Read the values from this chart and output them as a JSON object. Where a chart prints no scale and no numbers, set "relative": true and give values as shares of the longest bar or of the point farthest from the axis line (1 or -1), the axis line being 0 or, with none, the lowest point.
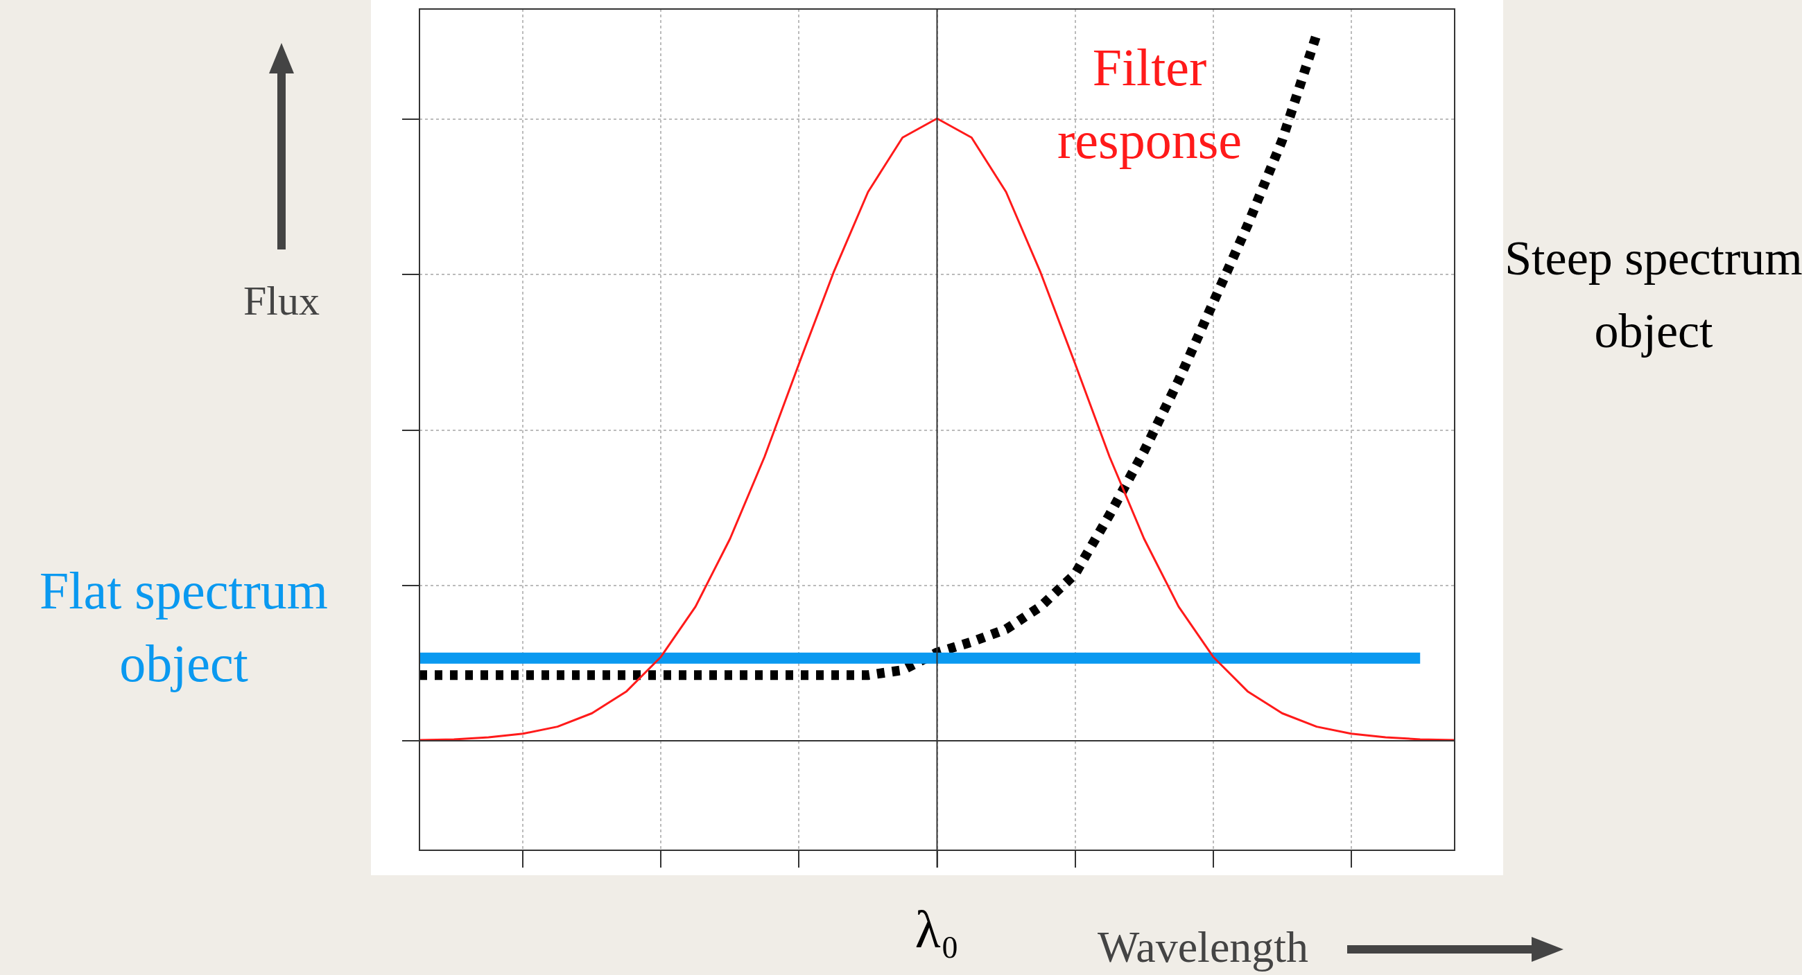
{
  "chart_data": {
    "type": "line",
    "relative": true,
    "xlabel": "Wavelength",
    "ylabel": "Flux",
    "legend": false,
    "grid": true,
    "annotations": [
      "λ₀"
    ],
    "categories": [
      null,
      null,
      null,
      null,
      null,
      null,
      null,
      null,
      null,
      null,
      null,
      null,
      null,
      null,
      null,
      null,
      null,
      null,
      null,
      null,
      null,
      null,
      null,
      null,
      null,
      null,
      null,
      null,
      null,
      null,
      null
    ],
    "series": [
      {
        "name": "Filter response",
        "color": "#ff1a1a",
        "line_style": "solid",
        "values": [
          0.001,
          0.002,
          0.005,
          0.01,
          0.02,
          0.039,
          0.07,
          0.119,
          0.19,
          0.286,
          0.402,
          0.534,
          0.663,
          0.777,
          0.854,
          0.881,
          0.854,
          0.777,
          0.663,
          0.534,
          0.402,
          0.286,
          0.19,
          0.119,
          0.07,
          0.039,
          0.02,
          0.01,
          0.005,
          0.002,
          0.001
        ]
      },
      {
        "name": "Flat spectrum object",
        "color": "#0a99f0",
        "line_style": "solid",
        "values": [
          0.117,
          0.117,
          0.117,
          0.117,
          0.117,
          0.117,
          0.117,
          0.117,
          0.117,
          0.117,
          0.117,
          0.117,
          0.117,
          0.117,
          0.117,
          0.117,
          0.117,
          0.117,
          0.117,
          0.117,
          0.117,
          0.117,
          0.117,
          0.117,
          0.117,
          0.117,
          0.117,
          0.117,
          0.117,
          0.117,
          null
        ]
      },
      {
        "name": "Steep spectrum object",
        "color": "#000000",
        "line_style": "dotted",
        "values": [
          0.093,
          0.093,
          0.093,
          0.093,
          0.093,
          0.093,
          0.093,
          0.093,
          0.093,
          0.093,
          0.093,
          0.093,
          0.093,
          0.093,
          0.1,
          0.125,
          0.14,
          0.158,
          0.19,
          0.236,
          0.32,
          0.41,
          0.51,
          0.62,
          0.73,
          0.85,
          1.0,
          null,
          null,
          null,
          null
        ]
      }
    ]
  }
}
